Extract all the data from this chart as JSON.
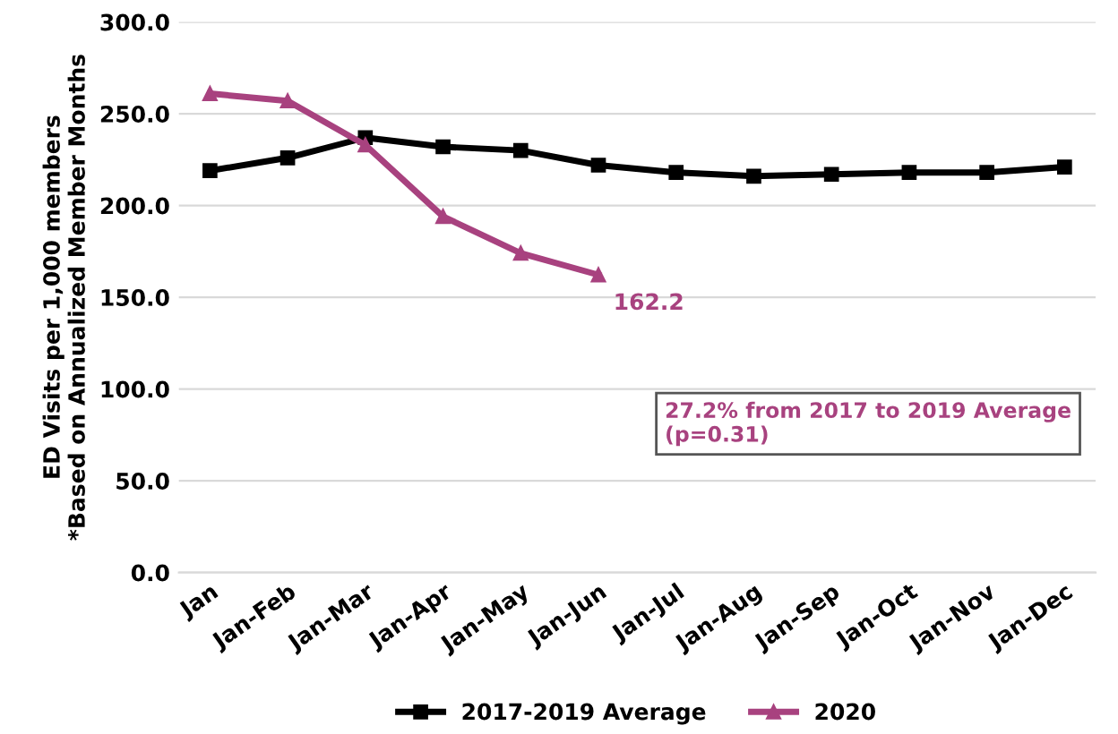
{
  "chart_data": {
    "type": "line",
    "ylabel": "ED Visits per 1,000 members\n*Based on Annualized Member Months",
    "categories": [
      "Jan",
      "Jan-Feb",
      "Jan-Mar",
      "Jan-Apr",
      "Jan-May",
      "Jan-Jun",
      "Jan-Jul",
      "Jan-Aug",
      "Jan-Sep",
      "Jan-Oct",
      "Jan-Nov",
      "Jan-Dec"
    ],
    "series": [
      {
        "name": "2017-2019 Average",
        "color": "#000000",
        "marker": "square",
        "values": [
          219,
          226,
          237,
          232,
          230,
          222,
          218,
          216,
          217,
          218,
          218,
          221
        ]
      },
      {
        "name": "2020",
        "color": "#a8427f",
        "marker": "triangle",
        "values": [
          261,
          257,
          233,
          194,
          174,
          162.2,
          null,
          null,
          null,
          null,
          null,
          null
        ],
        "value_labels": [
          null,
          null,
          null,
          null,
          null,
          "162.2",
          null,
          null,
          null,
          null,
          null,
          null
        ]
      }
    ],
    "annotations": [
      "27.2% from 2017 to 2019 Average\n(p=0.31)"
    ],
    "ylim": [
      0,
      300
    ],
    "yticks": [
      {
        "value": 0,
        "label": "0.0"
      },
      {
        "value": 50,
        "label": "50.0"
      },
      {
        "value": 100,
        "label": "100.0"
      },
      {
        "value": 150,
        "label": "150.0"
      },
      {
        "value": 200,
        "label": "200.0"
      },
      {
        "value": 250,
        "label": "250.0"
      },
      {
        "value": 300,
        "label": "300.0"
      }
    ],
    "grid": "y",
    "legend": "bottom",
    "line_style": "solid"
  }
}
